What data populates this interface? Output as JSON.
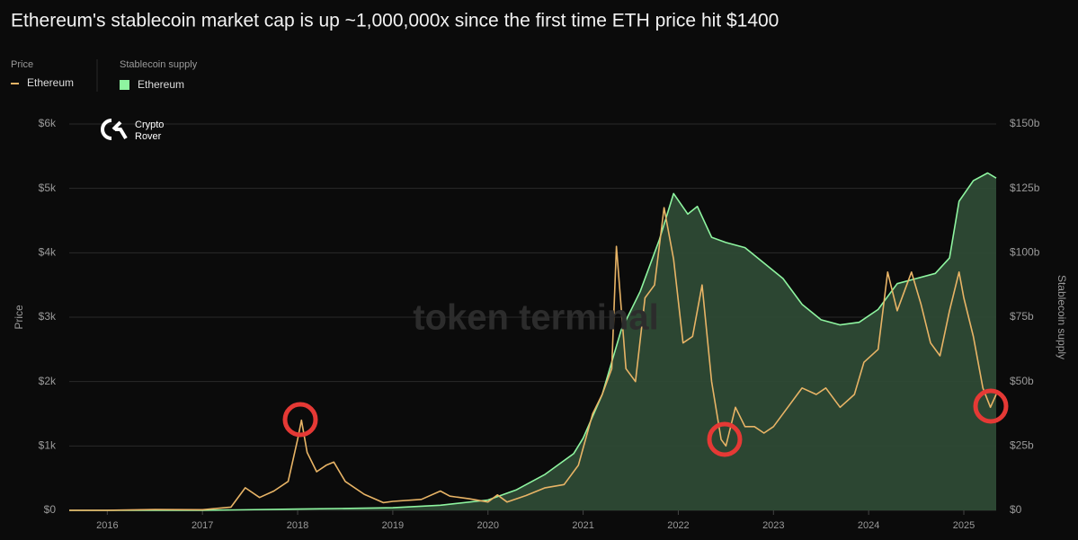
{
  "chart_data": {
    "type": "line",
    "title": "Ethereum's stablecoin market cap is up ~1,000,000x since the first time ETH price hit $1400",
    "ylabel": "Price",
    "y2label": "Stablecoin supply",
    "watermark": "token terminal",
    "logo_text": [
      "Crypto",
      "Rover"
    ],
    "grid": true,
    "xlim": [
      2015.6,
      2025.34
    ],
    "xticks": [
      2016,
      2017,
      2018,
      2019,
      2020,
      2021,
      2022,
      2023,
      2024,
      2025
    ],
    "ylim": [
      0,
      6000
    ],
    "yticks": [
      {
        "value": 0,
        "label": "$0"
      },
      {
        "value": 1000,
        "label": "$1k"
      },
      {
        "value": 2000,
        "label": "$2k"
      },
      {
        "value": 3000,
        "label": "$3k"
      },
      {
        "value": 4000,
        "label": "$4k"
      },
      {
        "value": 5000,
        "label": "$5k"
      },
      {
        "value": 6000,
        "label": "$6k"
      }
    ],
    "y2lim": [
      0,
      150
    ],
    "y2ticks": [
      {
        "value": 0,
        "label": "$0"
      },
      {
        "value": 25,
        "label": "$25b"
      },
      {
        "value": 50,
        "label": "$50b"
      },
      {
        "value": 75,
        "label": "$75b"
      },
      {
        "value": 100,
        "label": "$100b"
      },
      {
        "value": 125,
        "label": "$125b"
      },
      {
        "value": 150,
        "label": "$150b"
      }
    ],
    "series": [
      {
        "name": "Ethereum",
        "color": "#e8b466",
        "axis": "y",
        "x": [
          2015.6,
          2016.0,
          2016.5,
          2017.0,
          2017.3,
          2017.45,
          2017.6,
          2017.75,
          2017.9,
          2018.0,
          2018.04,
          2018.1,
          2018.2,
          2018.3,
          2018.38,
          2018.5,
          2018.7,
          2018.9,
          2019.0,
          2019.3,
          2019.5,
          2019.6,
          2019.8,
          2020.0,
          2020.1,
          2020.2,
          2020.4,
          2020.6,
          2020.8,
          2020.95,
          2021.1,
          2021.2,
          2021.3,
          2021.35,
          2021.45,
          2021.55,
          2021.65,
          2021.75,
          2021.85,
          2021.95,
          2022.05,
          2022.15,
          2022.25,
          2022.35,
          2022.45,
          2022.5,
          2022.6,
          2022.7,
          2022.8,
          2022.9,
          2023.0,
          2023.15,
          2023.3,
          2023.45,
          2023.55,
          2023.7,
          2023.85,
          2023.95,
          2024.1,
          2024.2,
          2024.3,
          2024.45,
          2024.55,
          2024.65,
          2024.75,
          2024.85,
          2024.95,
          2025.0,
          2025.1,
          2025.2,
          2025.28,
          2025.34
        ],
        "values": [
          1,
          1,
          12,
          10,
          50,
          350,
          200,
          300,
          450,
          1100,
          1400,
          900,
          600,
          700,
          750,
          450,
          250,
          120,
          140,
          170,
          300,
          220,
          180,
          130,
          240,
          130,
          230,
          350,
          400,
          700,
          1500,
          1800,
          2200,
          4100,
          2200,
          2000,
          3300,
          3500,
          4700,
          3900,
          2600,
          2700,
          3500,
          2000,
          1100,
          1000,
          1600,
          1300,
          1300,
          1200,
          1300,
          1600,
          1900,
          1800,
          1900,
          1600,
          1800,
          2300,
          2500,
          3700,
          3100,
          3700,
          3200,
          2600,
          2400,
          3100,
          3700,
          3300,
          2700,
          1900,
          1600,
          1800
        ]
      },
      {
        "name": "Ethereum",
        "color": "#8ef5a0",
        "fill": "#2e4a35",
        "axis": "y2",
        "x": [
          2015.6,
          2017.0,
          2018.0,
          2019.0,
          2019.5,
          2020.0,
          2020.3,
          2020.6,
          2020.9,
          2021.0,
          2021.2,
          2021.4,
          2021.6,
          2021.8,
          2021.95,
          2022.1,
          2022.2,
          2022.35,
          2022.5,
          2022.7,
          2022.9,
          2023.1,
          2023.3,
          2023.5,
          2023.7,
          2023.9,
          2024.1,
          2024.3,
          2024.5,
          2024.7,
          2024.85,
          2024.95,
          2025.1,
          2025.25,
          2025.34
        ],
        "values": [
          0,
          0,
          0.5,
          1,
          2,
          4,
          8,
          14,
          22,
          28,
          45,
          70,
          85,
          105,
          123,
          115,
          118,
          106,
          104,
          102,
          96,
          90,
          80,
          74,
          72,
          73,
          78,
          88,
          90,
          92,
          98,
          120,
          128,
          131,
          129
        ]
      }
    ]
  }
}
